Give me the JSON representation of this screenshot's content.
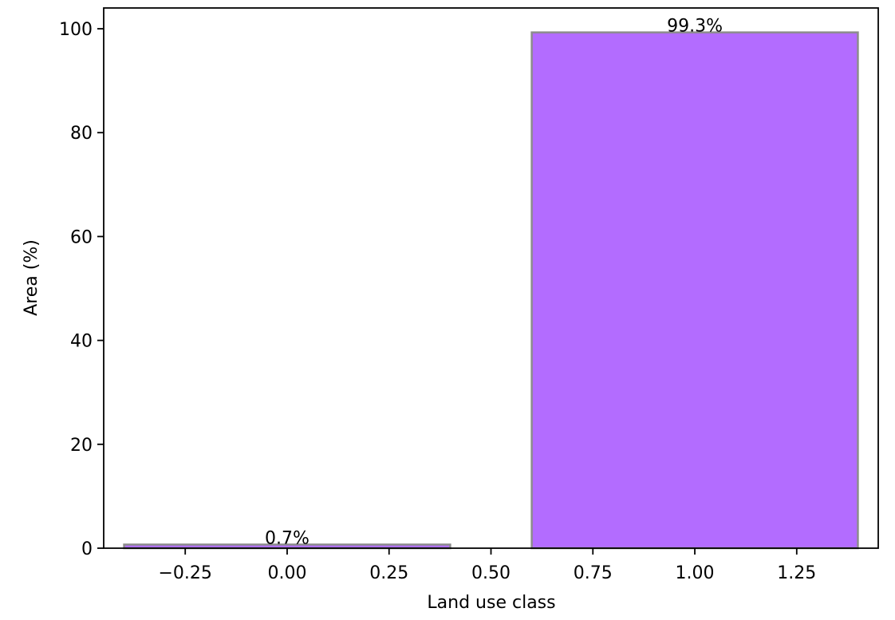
{
  "chart_data": {
    "type": "bar",
    "title": "",
    "xlabel": "Land use class",
    "ylabel": "Area (%)",
    "xlim": [
      -0.45,
      1.45
    ],
    "ylim": [
      0,
      104
    ],
    "x_ticks": [
      -0.25,
      0.0,
      0.25,
      0.5,
      0.75,
      1.0,
      1.25
    ],
    "x_tick_labels": [
      "−0.25",
      "0.00",
      "0.25",
      "0.50",
      "0.75",
      "1.00",
      "1.25"
    ],
    "y_ticks": [
      0,
      20,
      40,
      60,
      80,
      100
    ],
    "y_tick_labels": [
      "0",
      "20",
      "40",
      "60",
      "80",
      "100"
    ],
    "bar_width": 0.8,
    "bars": [
      {
        "x": 0,
        "value": 0.7,
        "label": "0.7%"
      },
      {
        "x": 1,
        "value": 99.3,
        "label": "99.3%"
      }
    ],
    "bar_color": "#b36cff",
    "bar_edge_color": "#8c8c8c",
    "grid": false,
    "legend": "none"
  }
}
